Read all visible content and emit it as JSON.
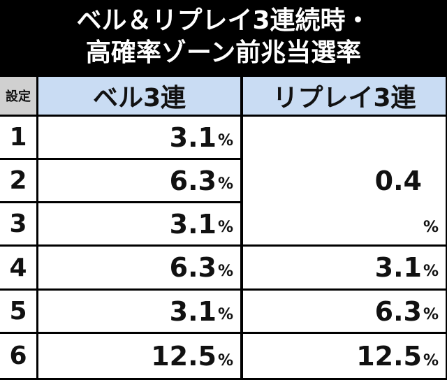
{
  "title": [
    "ベル＆リプレイ3連続時・",
    "高確率ゾーン前兆当選率"
  ],
  "table": {
    "header": [
      "設定",
      "ベル3連",
      "リプレイ3連"
    ],
    "rows": [
      [
        "1",
        {
          "number": "3.1",
          "unit": "%"
        },
        {
          "number": "0.4",
          "unit": "%"
        }
      ],
      [
        "2",
        {
          "number": "6.3",
          "unit": "%"
        }
      ],
      [
        "3",
        {
          "number": "3.1",
          "unit": "%"
        }
      ],
      [
        "4",
        {
          "number": "6.3",
          "unit": "%"
        },
        {
          "number": "3.1",
          "unit": "%"
        }
      ],
      [
        "5",
        {
          "number": "3.1",
          "unit": "%"
        },
        {
          "number": "6.3",
          "unit": "%"
        }
      ],
      [
        "6",
        {
          "number": "12.5",
          "unit": "%"
        },
        {
          "number": "12.5",
          "unit": "%"
        }
      ]
    ]
  }
}
